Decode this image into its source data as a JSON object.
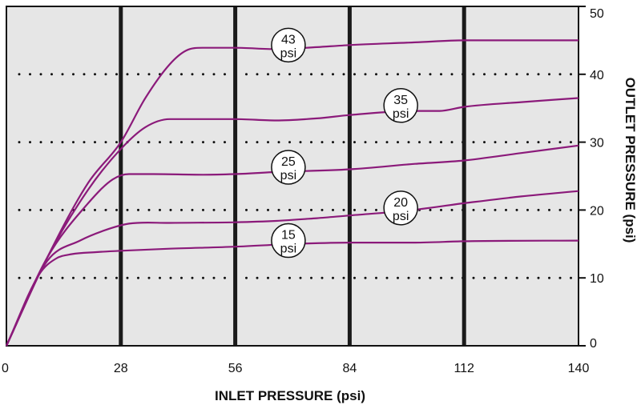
{
  "chart_data": {
    "type": "line",
    "xlabel": "INLET PRESSURE (psi)",
    "ylabel": "OUTLET PRESSURE (psi)",
    "xlim": [
      0,
      140
    ],
    "ylim": [
      0,
      50
    ],
    "x_ticks": [
      0,
      28,
      56,
      84,
      112,
      140
    ],
    "y_ticks": [
      0,
      10,
      20,
      30,
      40,
      50
    ],
    "y_axis_side": "right",
    "vertical_gridlines": "solid, at x ticks",
    "horizontal_gridlines": "dotted, at y ticks",
    "background_color": "#e6e6e6",
    "line_color": "#8b1a7a",
    "series": [
      {
        "label_number": "43",
        "label_unit": "psi",
        "label_x": 69,
        "label_y": 44.3,
        "points": [
          [
            0,
            0
          ],
          [
            10,
            13
          ],
          [
            20,
            24
          ],
          [
            28,
            30
          ],
          [
            34,
            36.5
          ],
          [
            40,
            41.5
          ],
          [
            44,
            43.5
          ],
          [
            48,
            43.9
          ],
          [
            56,
            43.9
          ],
          [
            66,
            43.7
          ],
          [
            76,
            44
          ],
          [
            84,
            44.3
          ],
          [
            100,
            44.7
          ],
          [
            112,
            45
          ],
          [
            140,
            45
          ]
        ]
      },
      {
        "label_number": "35",
        "label_unit": "psi",
        "label_x": 96.5,
        "label_y": 35.4,
        "points": [
          [
            0,
            0
          ],
          [
            10,
            13
          ],
          [
            20,
            23
          ],
          [
            28,
            29
          ],
          [
            34,
            32.2
          ],
          [
            40,
            33.4
          ],
          [
            48,
            33.4
          ],
          [
            56,
            33.4
          ],
          [
            66,
            33.2
          ],
          [
            76,
            33.5
          ],
          [
            84,
            34
          ],
          [
            100,
            34.6
          ],
          [
            106,
            34.6
          ],
          [
            112,
            35.2
          ],
          [
            126,
            35.9
          ],
          [
            140,
            36.5
          ]
        ]
      },
      {
        "label_number": "25",
        "label_unit": "psi",
        "label_x": 69,
        "label_y": 26.3,
        "points": [
          [
            0,
            0
          ],
          [
            10,
            13
          ],
          [
            20,
            21
          ],
          [
            26,
            24.5
          ],
          [
            30,
            25.3
          ],
          [
            36,
            25.3
          ],
          [
            48,
            25.2
          ],
          [
            56,
            25.3
          ],
          [
            66,
            25.6
          ],
          [
            84,
            26
          ],
          [
            100,
            26.8
          ],
          [
            112,
            27.3
          ],
          [
            126,
            28.4
          ],
          [
            140,
            29.5
          ]
        ]
      },
      {
        "label_number": "20",
        "label_unit": "psi",
        "label_x": 96.5,
        "label_y": 20.3,
        "points": [
          [
            0,
            0
          ],
          [
            10,
            12.5
          ],
          [
            18,
            15.5
          ],
          [
            24,
            17
          ],
          [
            30,
            18
          ],
          [
            40,
            18.1
          ],
          [
            56,
            18.2
          ],
          [
            66,
            18.4
          ],
          [
            76,
            18.8
          ],
          [
            84,
            19.2
          ],
          [
            98,
            19.9
          ],
          [
            112,
            21
          ],
          [
            126,
            22
          ],
          [
            140,
            22.8
          ]
        ]
      },
      {
        "label_number": "15",
        "label_unit": "psi",
        "label_x": 69,
        "label_y": 15.5,
        "points": [
          [
            0,
            0
          ],
          [
            8,
            10.5
          ],
          [
            12,
            12.8
          ],
          [
            16,
            13.5
          ],
          [
            22,
            13.8
          ],
          [
            28,
            14
          ],
          [
            40,
            14.3
          ],
          [
            56,
            14.6
          ],
          [
            70,
            15
          ],
          [
            84,
            15.2
          ],
          [
            100,
            15.2
          ],
          [
            112,
            15.4
          ],
          [
            140,
            15.5
          ]
        ]
      }
    ]
  }
}
